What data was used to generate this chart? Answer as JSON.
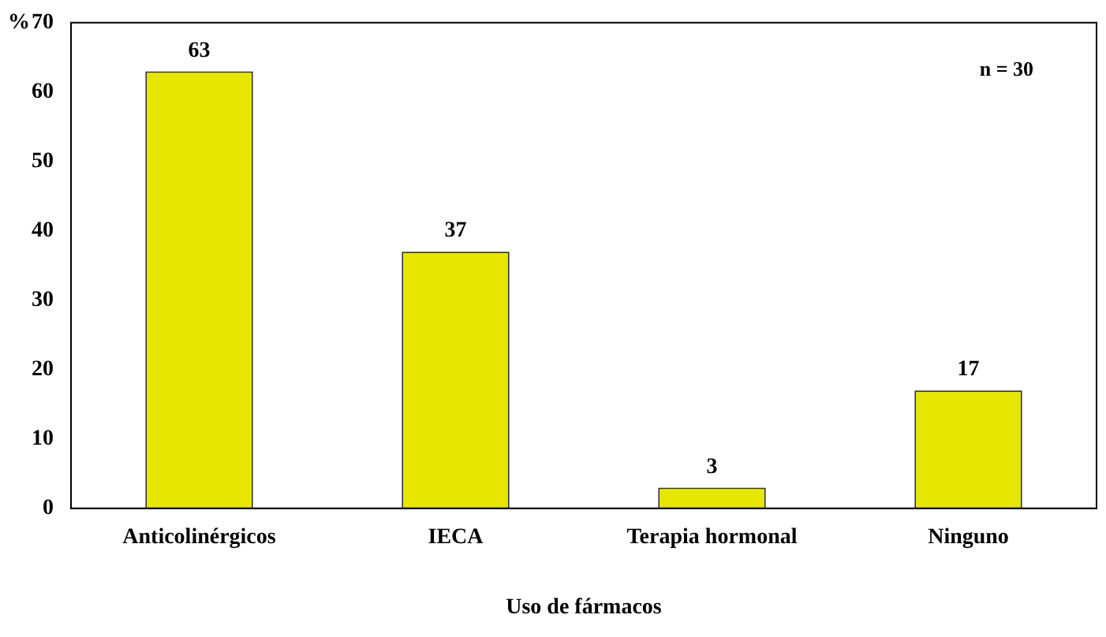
{
  "chart_data": {
    "type": "bar",
    "categories": [
      "Anticolinérgicos",
      "IECA",
      "Terapia hormonal",
      "Ninguno"
    ],
    "values": [
      63,
      37,
      3,
      17
    ],
    "color": "#e6e600",
    "ylabel": "%",
    "xlabel": "Uso de fármacos",
    "ylim": [
      0,
      70
    ],
    "yticks": [
      0,
      10,
      20,
      30,
      40,
      50,
      60,
      70
    ],
    "data_labels": true,
    "annotations": [
      "n = 30"
    ],
    "grid": false,
    "legend": false
  }
}
